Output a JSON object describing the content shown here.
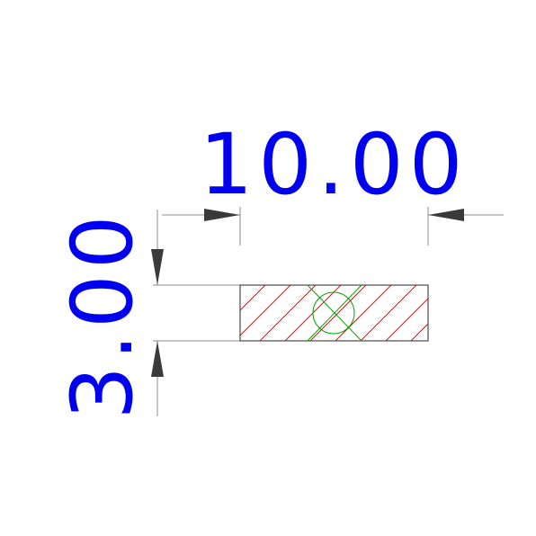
{
  "dimensions": {
    "width_label": "10.00",
    "height_label": "3.00"
  },
  "colors": {
    "dimension_text": "#0000f0",
    "hatch": "#ff0000",
    "center_mark": "#00a000"
  }
}
